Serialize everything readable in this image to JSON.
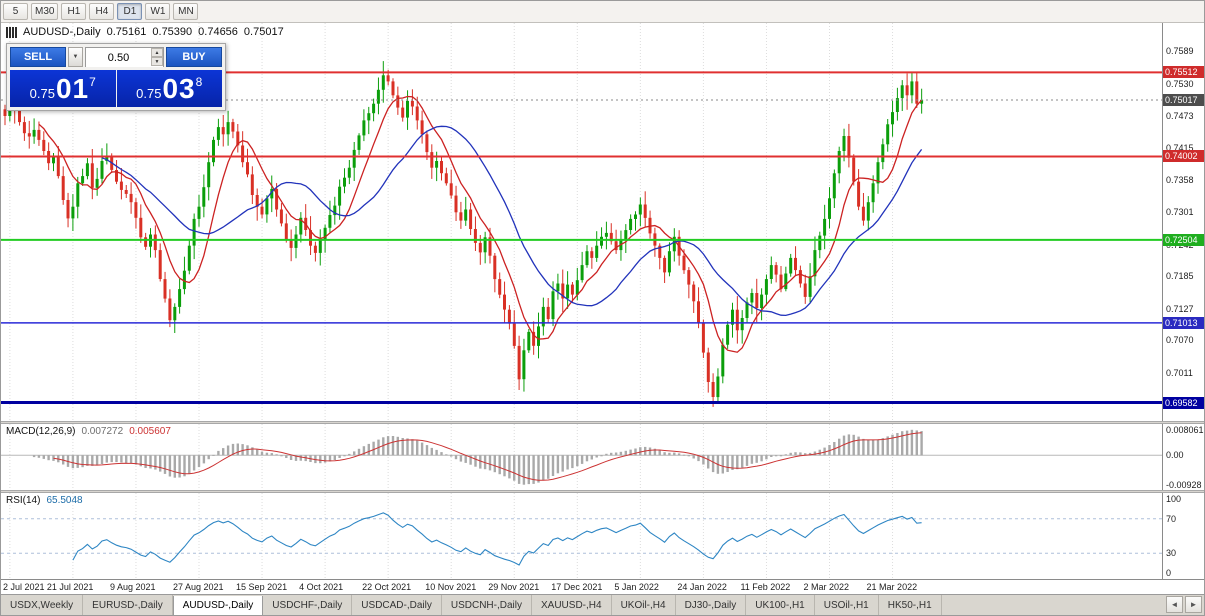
{
  "toolbar": {
    "timeframes": [
      "5",
      "M30",
      "H1",
      "H4",
      "D1",
      "W1",
      "MN"
    ],
    "active": "D1"
  },
  "chart": {
    "header": {
      "symbol": "AUDUSD-,Daily",
      "open": "0.75161",
      "high": "0.75390",
      "low": "0.74656",
      "close": "0.75017"
    }
  },
  "trade": {
    "sell_label": "SELL",
    "buy_label": "BUY",
    "volume": "0.50",
    "sell": {
      "prefix": "0.75",
      "big": "01",
      "sup": "7"
    },
    "buy": {
      "prefix": "0.75",
      "big": "03",
      "sup": "8"
    }
  },
  "icons": {
    "dropdown": "▼",
    "spin_up": "▲",
    "spin_down": "▼",
    "tabs_left": "◄",
    "tabs_right": "►"
  },
  "macd": {
    "name": "MACD(12,26,9)",
    "main": "0.007272",
    "signal": "0.005607"
  },
  "rsi": {
    "name": "RSI(14)",
    "value": "65.5048"
  },
  "tabs": {
    "items": [
      "USDX,Weekly",
      "EURUSD-,Daily",
      "AUDUSD-,Daily",
      "USDCHF-,Daily",
      "USDCAD-,Daily",
      "USDCNH-,Daily",
      "XAUUSD-,H4",
      "UKOil-,H4",
      "DJ30-,Daily",
      "UK100-,H1",
      "USOil-,H1",
      "HK50-,H1"
    ],
    "active_index": 2
  },
  "colors": {
    "bull": "#0b9e0b",
    "bear": "#d93025",
    "ma_fast": "#cc2222",
    "ma_slow": "#2233bb",
    "macd_hist": "#a9a9a9",
    "macd_signal": "#cc3333",
    "rsi_line": "#2e86c4",
    "grid": "#dcdcdc",
    "level_dash": "#aebfda"
  },
  "chart_data": {
    "type": "candlestick",
    "title": "AUDUSD-,Daily",
    "bars_per_label": 13,
    "x_labels": [
      "2 Jul 2021",
      "21 Jul 2021",
      "9 Aug 2021",
      "27 Aug 2021",
      "15 Sep 2021",
      "4 Oct 2021",
      "22 Oct 2021",
      "10 Nov 2021",
      "29 Nov 2021",
      "17 Dec 2021",
      "5 Jan 2022",
      "24 Jan 2022",
      "11 Feb 2022",
      "2 Mar 2022",
      "21 Mar 2022"
    ],
    "y_axis_ticks": [
      0.7589,
      0.753,
      0.7473,
      0.7415,
      0.7358,
      0.7301,
      0.7242,
      0.7185,
      0.7127,
      0.707,
      0.7011
    ],
    "ohlc_header": {
      "open": 0.75161,
      "high": 0.7539,
      "low": 0.74656,
      "close": 0.75017
    },
    "closes": [
      0.7473,
      0.749,
      0.7485,
      0.7462,
      0.7442,
      0.7436,
      0.7448,
      0.743,
      0.741,
      0.7388,
      0.7402,
      0.7365,
      0.7322,
      0.7289,
      0.731,
      0.7352,
      0.7365,
      0.7388,
      0.7344,
      0.736,
      0.7392,
      0.7401,
      0.7376,
      0.7355,
      0.734,
      0.7333,
      0.7318,
      0.729,
      0.7255,
      0.7238,
      0.726,
      0.7232,
      0.718,
      0.7145,
      0.7106,
      0.713,
      0.7162,
      0.7195,
      0.724,
      0.7288,
      0.731,
      0.7345,
      0.739,
      0.743,
      0.7453,
      0.744,
      0.7462,
      0.7445,
      0.742,
      0.739,
      0.7368,
      0.7331,
      0.731,
      0.7296,
      0.7325,
      0.7342,
      0.7305,
      0.728,
      0.7252,
      0.7236,
      0.726,
      0.729,
      0.7268,
      0.724,
      0.7227,
      0.725,
      0.7272,
      0.7295,
      0.7312,
      0.7346,
      0.7362,
      0.738,
      0.7412,
      0.7438,
      0.7465,
      0.7478,
      0.7495,
      0.752,
      0.7546,
      0.7535,
      0.751,
      0.7488,
      0.747,
      0.75,
      0.749,
      0.7465,
      0.744,
      0.7408,
      0.738,
      0.7392,
      0.737,
      0.7352,
      0.733,
      0.73,
      0.7285,
      0.7305,
      0.727,
      0.7245,
      0.7228,
      0.7255,
      0.7222,
      0.718,
      0.7152,
      0.7125,
      0.71,
      0.706,
      0.7,
      0.7052,
      0.7085,
      0.706,
      0.7095,
      0.713,
      0.7108,
      0.7158,
      0.7172,
      0.7145,
      0.717,
      0.7152,
      0.7178,
      0.7205,
      0.723,
      0.7218,
      0.724,
      0.7256,
      0.7263,
      0.7248,
      0.7232,
      0.725,
      0.7268,
      0.7288,
      0.7296,
      0.7314,
      0.729,
      0.7262,
      0.724,
      0.7218,
      0.7192,
      0.723,
      0.7256,
      0.7222,
      0.7196,
      0.717,
      0.714,
      0.7102,
      0.7048,
      0.6995,
      0.6968,
      0.7005,
      0.7062,
      0.7098,
      0.7125,
      0.7088,
      0.711,
      0.7138,
      0.7155,
      0.7128,
      0.7152,
      0.718,
      0.7205,
      0.7188,
      0.7162,
      0.719,
      0.7218,
      0.7196,
      0.7172,
      0.7148,
      0.7185,
      0.7232,
      0.7258,
      0.7288,
      0.7325,
      0.737,
      0.741,
      0.7437,
      0.7398,
      0.7355,
      0.731,
      0.7285,
      0.7318,
      0.7352,
      0.739,
      0.7422,
      0.7458,
      0.748,
      0.7505,
      0.7528,
      0.751,
      0.7535,
      0.7495,
      0.7502
    ],
    "horizontal_lines": [
      {
        "price": 0.75512,
        "color": "#e03030",
        "width": 2,
        "style": "solid",
        "badge": "#cf2b2b"
      },
      {
        "price": 0.75017,
        "color": "#8a8a8a",
        "width": 1,
        "style": "dotted",
        "badge": "#4d4d4d"
      },
      {
        "price": 0.74002,
        "color": "#e03030",
        "width": 2,
        "style": "solid",
        "badge": "#cf2b2b"
      },
      {
        "price": 0.72504,
        "color": "#22cc22",
        "width": 2,
        "style": "solid",
        "badge": "#1fae1f"
      },
      {
        "price": 0.71013,
        "color": "#2a2ad8",
        "width": 1.5,
        "style": "solid",
        "badge": "#2a2ac0"
      },
      {
        "price": 0.69582,
        "color": "#0000a0",
        "width": 3,
        "style": "solid",
        "badge": "#0000a0"
      }
    ],
    "moving_averages": [
      {
        "period": 8,
        "color": "#cc2222"
      },
      {
        "period": 21,
        "color": "#2233bb"
      }
    ],
    "indicators": [
      {
        "name": "MACD",
        "params": "12,26,9",
        "current_main": 0.007272,
        "current_signal": 0.005607,
        "y_ticks": [
          "0.008061",
          "0.00",
          "-0.00928"
        ]
      },
      {
        "name": "RSI",
        "params": "14",
        "current": 65.5048,
        "levels": [
          70,
          30
        ],
        "y_ticks": [
          100,
          70,
          30,
          0
        ]
      }
    ]
  }
}
